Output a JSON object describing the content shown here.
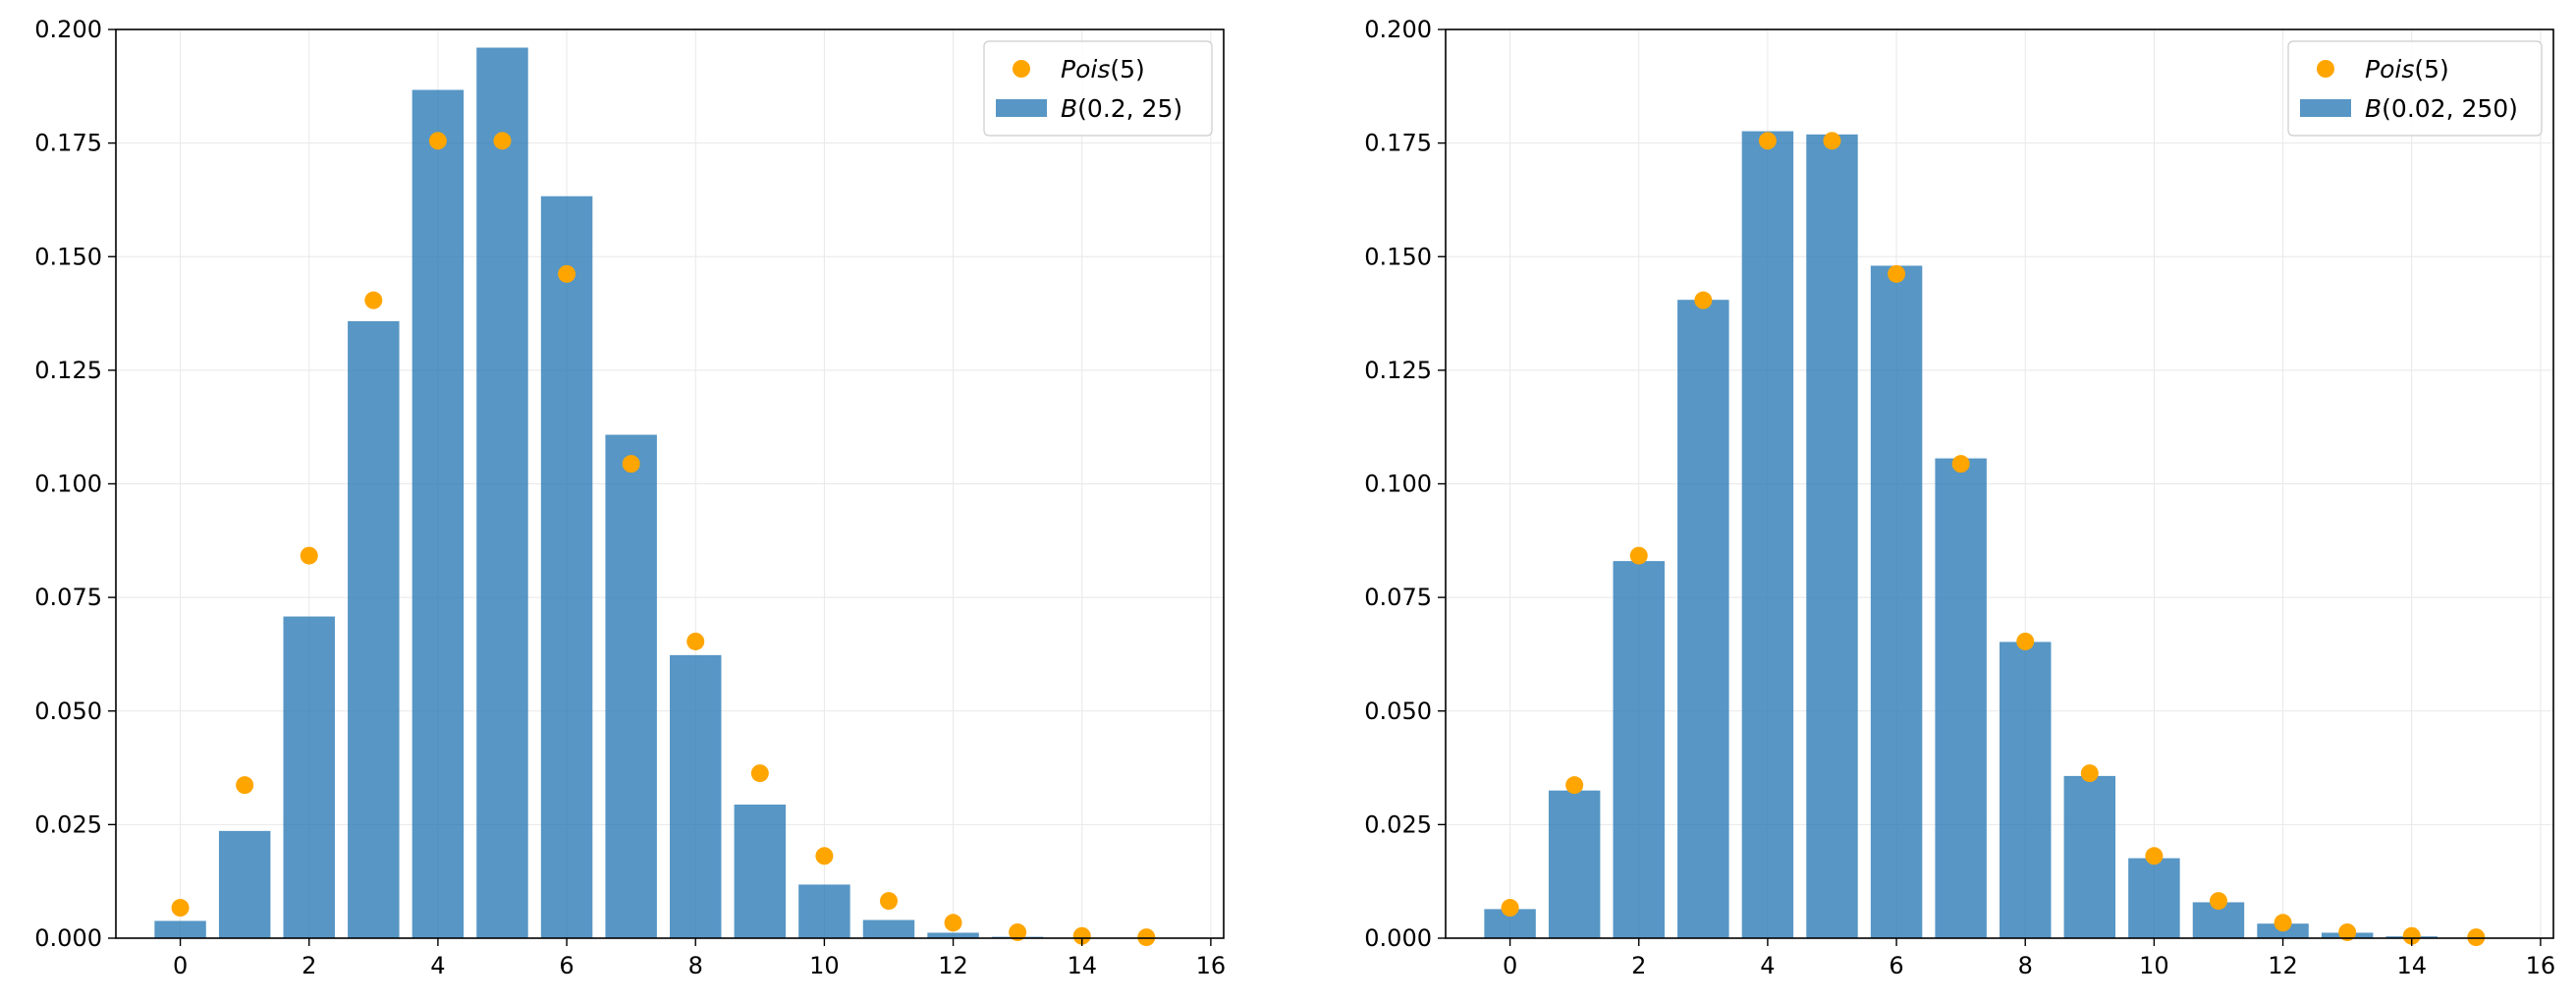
{
  "chart_data": [
    {
      "type": "bar",
      "title": "",
      "xlabel": "",
      "ylabel": "",
      "xlim": [
        -1,
        16.2
      ],
      "ylim": [
        0,
        0.2
      ],
      "xticks": [
        "0",
        "2",
        "4",
        "6",
        "8",
        "10",
        "12",
        "14",
        "16"
      ],
      "yticks": [
        "0.000",
        "0.025",
        "0.050",
        "0.075",
        "0.100",
        "0.125",
        "0.150",
        "0.175",
        "0.200"
      ],
      "grid": true,
      "legend": "top-right",
      "x": [
        0,
        1,
        2,
        3,
        4,
        5,
        6,
        7,
        8,
        9,
        10,
        11,
        12,
        13,
        14,
        15
      ],
      "series": [
        {
          "name": "Pois(5)",
          "kind": "scatter",
          "color": "#ffa500",
          "values": [
            0.0067,
            0.0337,
            0.0842,
            0.1404,
            0.1755,
            0.1755,
            0.1462,
            0.1044,
            0.0653,
            0.0363,
            0.0181,
            0.0082,
            0.0034,
            0.0013,
            0.0005,
            0.0002
          ]
        },
        {
          "name": "B(0.2, 25)",
          "kind": "bar",
          "color": "#2878b5",
          "values": [
            0.0038,
            0.0236,
            0.0708,
            0.1358,
            0.1867,
            0.196,
            0.1633,
            0.1108,
            0.0623,
            0.0294,
            0.0118,
            0.004,
            0.0012,
            0.0003,
            0.0001,
            0.0
          ]
        }
      ]
    },
    {
      "type": "bar",
      "title": "",
      "xlabel": "",
      "ylabel": "",
      "xlim": [
        -1,
        16.2
      ],
      "ylim": [
        0,
        0.2
      ],
      "xticks": [
        "0",
        "2",
        "4",
        "6",
        "8",
        "10",
        "12",
        "14",
        "16"
      ],
      "yticks": [
        "0.000",
        "0.025",
        "0.050",
        "0.075",
        "0.100",
        "0.125",
        "0.150",
        "0.175",
        "0.200"
      ],
      "grid": true,
      "legend": "top-right",
      "x": [
        0,
        1,
        2,
        3,
        4,
        5,
        6,
        7,
        8,
        9,
        10,
        11,
        12,
        13,
        14,
        15
      ],
      "series": [
        {
          "name": "Pois(5)",
          "kind": "scatter",
          "color": "#ffa500",
          "values": [
            0.0067,
            0.0337,
            0.0842,
            0.1404,
            0.1755,
            0.1755,
            0.1462,
            0.1044,
            0.0653,
            0.0363,
            0.0181,
            0.0082,
            0.0034,
            0.0013,
            0.0005,
            0.0002
          ]
        },
        {
          "name": "B(0.02, 250)",
          "kind": "bar",
          "color": "#2878b5",
          "values": [
            0.0064,
            0.0325,
            0.083,
            0.1405,
            0.1776,
            0.1769,
            0.148,
            0.1056,
            0.0652,
            0.0357,
            0.0176,
            0.0079,
            0.0032,
            0.0012,
            0.0004,
            0.0001
          ]
        }
      ]
    }
  ]
}
